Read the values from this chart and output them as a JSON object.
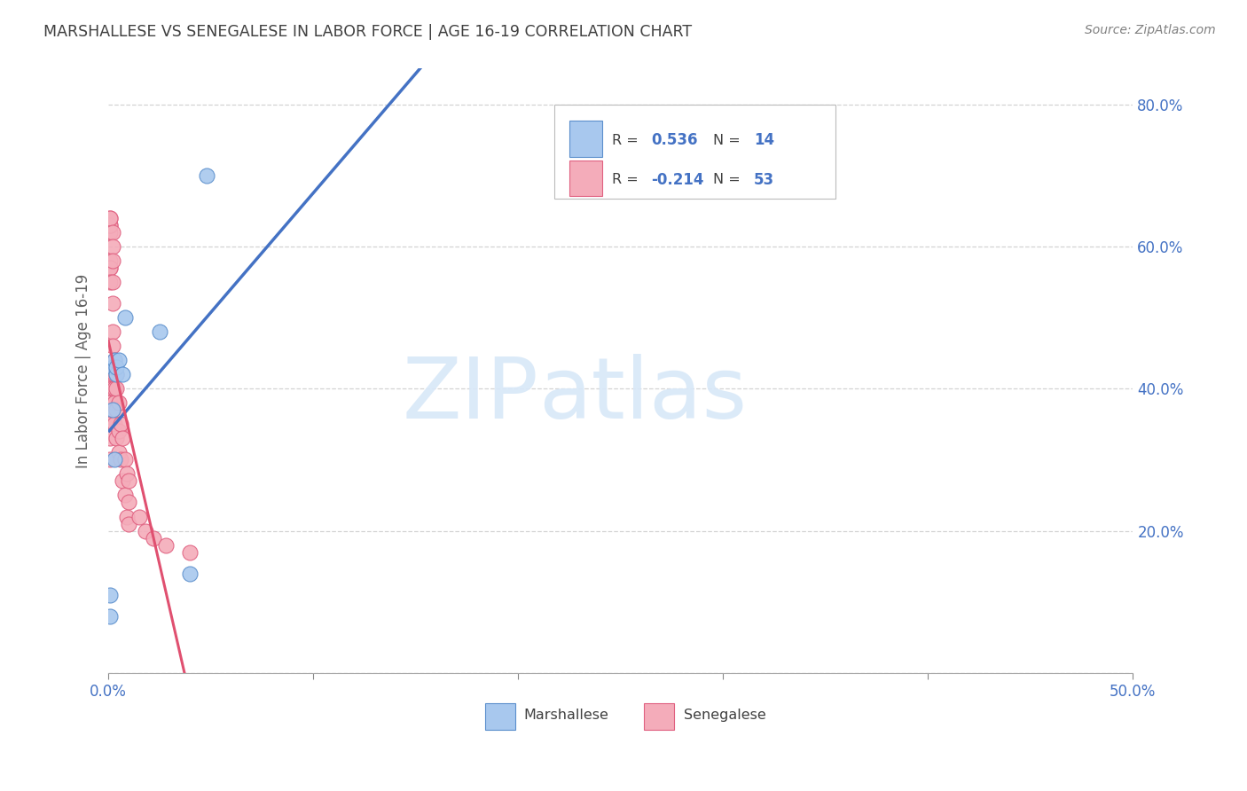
{
  "title": "MARSHALLESE VS SENEGALESE IN LABOR FORCE | AGE 16-19 CORRELATION CHART",
  "source_text": "Source: ZipAtlas.com",
  "ylabel": "In Labor Force | Age 16-19",
  "xlim": [
    0.0,
    0.5
  ],
  "ylim": [
    0.0,
    0.85
  ],
  "xticks": [
    0.0,
    0.1,
    0.2,
    0.3,
    0.4,
    0.5
  ],
  "xticklabels": [
    "0.0%",
    "",
    "",
    "",
    "",
    "50.0%"
  ],
  "yticks": [
    0.0,
    0.2,
    0.4,
    0.6,
    0.8
  ],
  "yticklabels_right": [
    "",
    "20.0%",
    "40.0%",
    "60.0%",
    "80.0%"
  ],
  "marshallese_x": [
    0.001,
    0.001,
    0.002,
    0.002,
    0.003,
    0.003,
    0.004,
    0.004,
    0.005,
    0.007,
    0.008,
    0.025,
    0.04,
    0.048
  ],
  "marshallese_y": [
    0.08,
    0.11,
    0.37,
    0.43,
    0.44,
    0.3,
    0.42,
    0.43,
    0.44,
    0.42,
    0.5,
    0.48,
    0.14,
    0.7
  ],
  "senegalese_x": [
    0.001,
    0.001,
    0.001,
    0.001,
    0.001,
    0.001,
    0.001,
    0.001,
    0.001,
    0.001,
    0.001,
    0.001,
    0.001,
    0.001,
    0.001,
    0.001,
    0.002,
    0.002,
    0.002,
    0.002,
    0.002,
    0.002,
    0.002,
    0.002,
    0.002,
    0.003,
    0.003,
    0.003,
    0.003,
    0.003,
    0.004,
    0.004,
    0.004,
    0.004,
    0.005,
    0.005,
    0.005,
    0.006,
    0.006,
    0.007,
    0.007,
    0.008,
    0.008,
    0.009,
    0.009,
    0.01,
    0.01,
    0.01,
    0.015,
    0.018,
    0.022,
    0.028,
    0.04
  ],
  "senegalese_y": [
    0.57,
    0.58,
    0.62,
    0.63,
    0.63,
    0.64,
    0.64,
    0.57,
    0.55,
    0.42,
    0.38,
    0.38,
    0.36,
    0.35,
    0.33,
    0.3,
    0.62,
    0.6,
    0.58,
    0.55,
    0.52,
    0.48,
    0.46,
    0.42,
    0.4,
    0.44,
    0.42,
    0.4,
    0.38,
    0.35,
    0.42,
    0.4,
    0.37,
    0.33,
    0.38,
    0.34,
    0.31,
    0.35,
    0.3,
    0.33,
    0.27,
    0.3,
    0.25,
    0.28,
    0.22,
    0.27,
    0.24,
    0.21,
    0.22,
    0.2,
    0.19,
    0.18,
    0.17
  ],
  "marshallese_R": 0.536,
  "marshallese_N": 14,
  "senegalese_R": -0.214,
  "senegalese_N": 53,
  "blue_fill": "#A8C8EE",
  "blue_edge": "#5B8FCC",
  "pink_fill": "#F4ACBA",
  "pink_edge": "#E06080",
  "blue_line": "#4472C4",
  "pink_line_solid": "#E05070",
  "pink_line_dash": "#E8A0B0",
  "grid_color": "#C8C8C8",
  "axis_color": "#4472C4",
  "title_color": "#404040",
  "source_color": "#808080",
  "ylabel_color": "#606060",
  "watermark_color": "#D8E8F8",
  "legend_R_color": "#4472C4",
  "legend_text_color": "#404040",
  "figsize": [
    14.06,
    8.92
  ],
  "dpi": 100
}
